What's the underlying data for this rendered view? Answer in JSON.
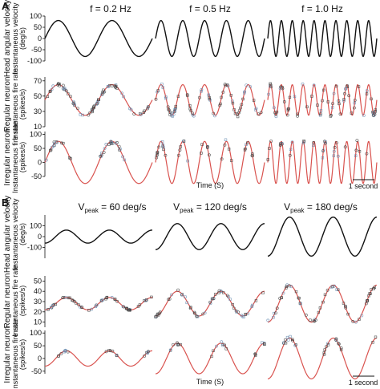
{
  "panels": {
    "a_letter": "A",
    "b_letter": "B"
  },
  "figure_a": {
    "titles": [
      "f = 0.2 Hz",
      "f = 0.5 Hz",
      "f = 1.0 Hz"
    ],
    "xlabel": "Time (S)",
    "scalebar": "1 second",
    "row_labels": [
      [
        "Head angular velocity",
        "Instantaneous velocity",
        "(deg/s)"
      ],
      [
        "Regular neuron",
        "Instantaneous fire rate",
        "(spikes/s)"
      ],
      [
        "Irregular neuron",
        "Instantaneous fire rate",
        "(spikes/s)"
      ]
    ],
    "yticks": [
      [
        "100",
        "50",
        "0",
        "-50",
        "-100"
      ],
      [
        "70",
        "50",
        "30",
        "10"
      ],
      [
        "100",
        "50",
        "0",
        "-50"
      ]
    ]
  },
  "figure_b": {
    "titles": [
      {
        "sub": "peak",
        "text": " = 60 deg/s"
      },
      {
        "sub": "peak",
        "text": " = 120 deg/s"
      },
      {
        "sub": "peak",
        "text": " = 180 deg/s"
      }
    ],
    "title_letter": "V",
    "xlabel": "Time (S)",
    "scalebar": "1 second",
    "row_labels": [
      [
        "Head angular velocity",
        "Instantaneous velocity",
        "(deg/s)"
      ],
      [
        "Regular neuron",
        "Instantaneous fire rate",
        "(spikes/s)"
      ],
      [
        "Irregular neuron",
        "Instantaneous fire rate",
        "(spikes/s)"
      ]
    ],
    "yticks": [
      [
        "100",
        "0",
        "-100"
      ],
      [
        "50",
        "40",
        "30",
        "20",
        "10"
      ],
      [
        "100",
        "50",
        "0",
        "-50"
      ]
    ]
  },
  "chart_data": [
    {
      "type": "line",
      "panel": "A",
      "description_rows": [
        "head velocity",
        "regular neuron",
        "irregular neuron"
      ],
      "columns": [
        {
          "title": "f = 0.2 Hz",
          "freq_hz": 0.2,
          "duration_s": 10
        },
        {
          "title": "f = 0.5 Hz",
          "freq_hz": 0.5,
          "duration_s": 10
        },
        {
          "title": "f = 1.0 Hz",
          "freq_hz": 1.0,
          "duration_s": 10
        }
      ],
      "series": [
        {
          "row": 0,
          "amplitude": 80,
          "offset": 0,
          "ylim": [
            -100,
            100
          ]
        },
        {
          "row": 1,
          "amplitude": 20,
          "offset": 45,
          "ylim": [
            10,
            75
          ]
        },
        {
          "row": 2,
          "amplitude": 75,
          "offset": 0,
          "ylim": [
            -50,
            110
          ],
          "rectified": true
        }
      ],
      "colors": {
        "stimulus": "#111111",
        "fit": "#d9534f",
        "data_markers": "#444444",
        "data_markers_alt": "#6b8fb3"
      }
    },
    {
      "type": "line",
      "panel": "B",
      "columns": [
        {
          "title": "Vpeak = 60 deg/s",
          "vpeak": 60,
          "freq_hz": 0.5
        },
        {
          "title": "Vpeak = 120 deg/s",
          "vpeak": 120,
          "freq_hz": 0.5
        },
        {
          "title": "Vpeak = 180 deg/s",
          "vpeak": 180,
          "freq_hz": 0.5
        }
      ],
      "series": [
        {
          "row": 0,
          "amplitudes": [
            60,
            120,
            180
          ],
          "offset": 0,
          "ylim": [
            -200,
            200
          ]
        },
        {
          "row": 1,
          "amplitudes": [
            6,
            12,
            18
          ],
          "offset": 28,
          "ylim": [
            5,
            55
          ]
        },
        {
          "row": 2,
          "amplitudes": [
            30,
            60,
            80
          ],
          "offset": 0,
          "ylim": [
            -60,
            110
          ],
          "rectified": true
        }
      ],
      "colors": {
        "stimulus": "#111111",
        "fit": "#d9534f",
        "data_markers": "#444444",
        "data_markers_alt": "#6b8fb3"
      }
    }
  ]
}
